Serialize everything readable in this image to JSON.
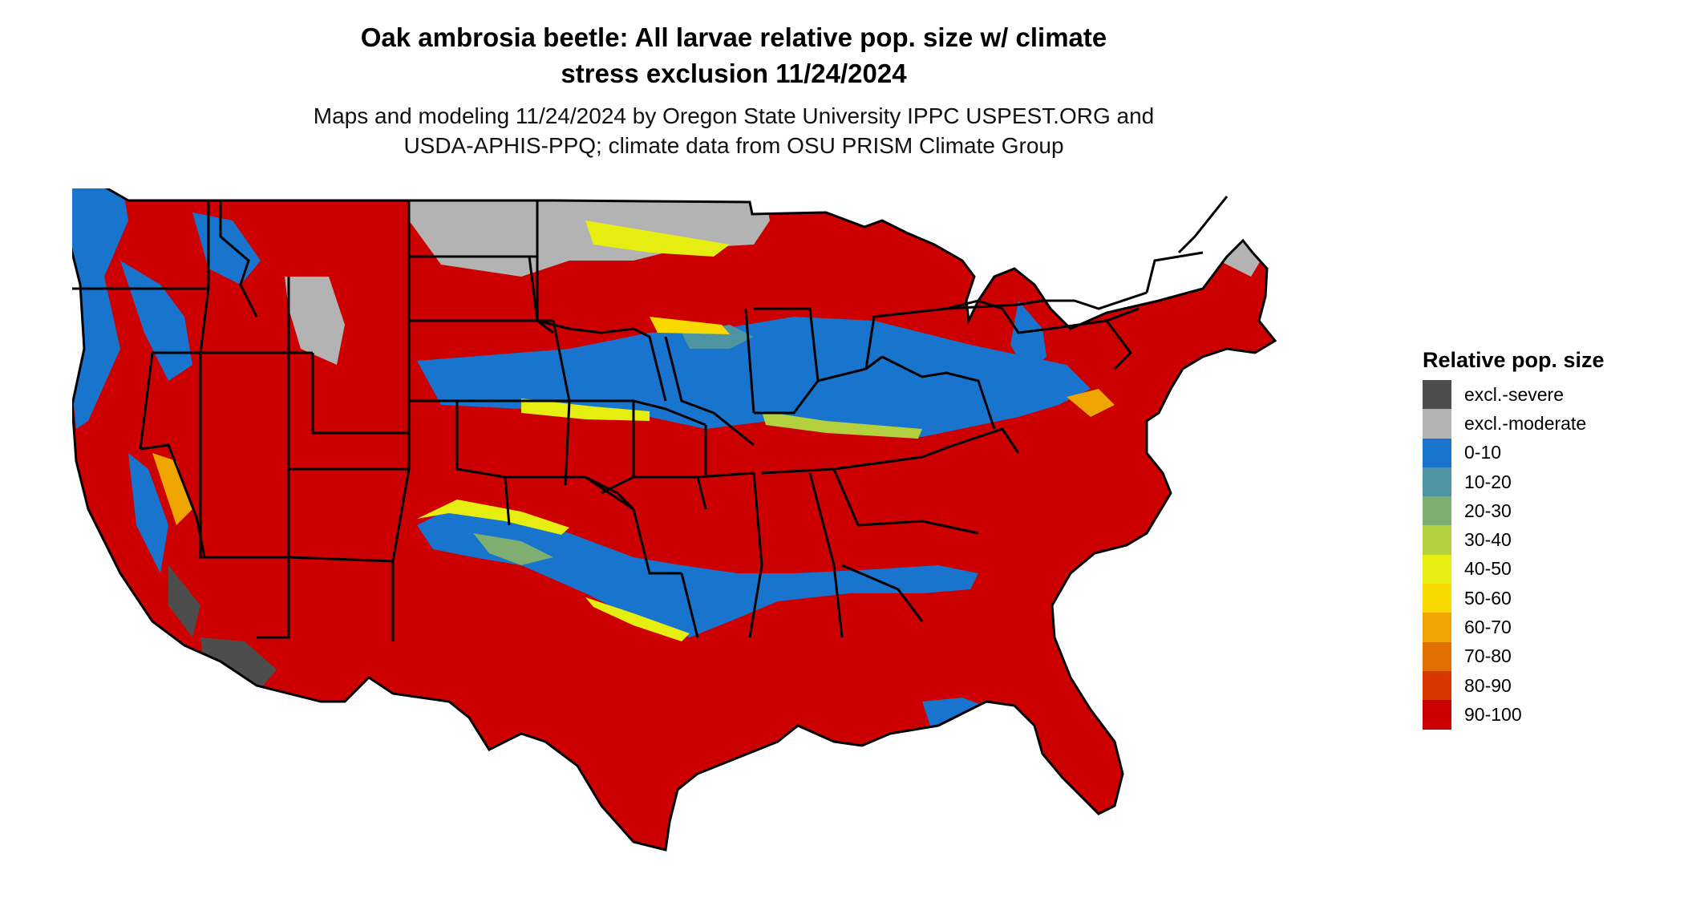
{
  "title_lines": [
    "Oak ambrosia beetle: All larvae relative pop. size w/ climate",
    "stress exclusion 11/24/2024"
  ],
  "subtitle_lines": [
    "Maps and modeling 11/24/2024 by Oregon State University IPPC USPEST.ORG and",
    "USDA-APHIS-PPQ; climate data from OSU PRISM Climate Group"
  ],
  "legend": {
    "title": "Relative pop. size",
    "items": [
      {
        "label": "excl.-severe",
        "color": "#4d4d4d"
      },
      {
        "label": "excl.-moderate",
        "color": "#b3b3b3"
      },
      {
        "label": "0-10",
        "color": "#1874cd"
      },
      {
        "label": "10-20",
        "color": "#4e94a3"
      },
      {
        "label": "20-30",
        "color": "#7fae72"
      },
      {
        "label": "30-40",
        "color": "#b3d03f"
      },
      {
        "label": "40-50",
        "color": "#e5ee10"
      },
      {
        "label": "50-60",
        "color": "#f7d800"
      },
      {
        "label": "60-70",
        "color": "#eea500"
      },
      {
        "label": "70-80",
        "color": "#e07000"
      },
      {
        "label": "80-90",
        "color": "#d83800"
      },
      {
        "label": "90-100",
        "color": "#cc0000"
      }
    ]
  },
  "map": {
    "region": "conterminous-united-states",
    "background_color": "#ffffff",
    "border_color": "#000000"
  }
}
